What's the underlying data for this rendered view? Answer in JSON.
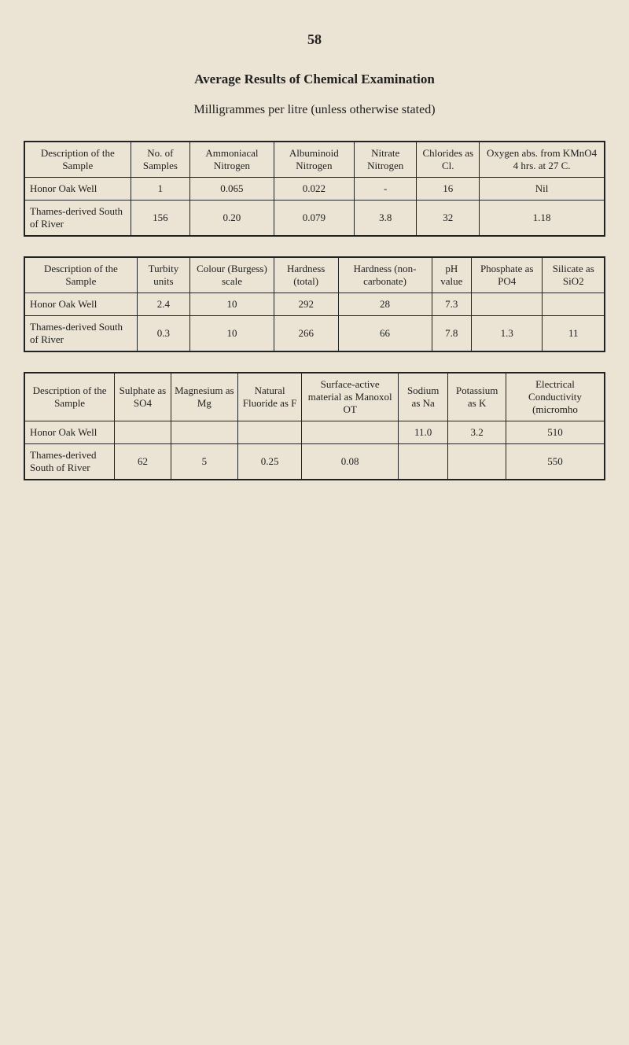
{
  "page_number": "58",
  "title": "Average Results of Chemical Examination",
  "subtitle": "Milligrammes per litre (unless otherwise stated)",
  "table1": {
    "headers": [
      "Description of the Sample",
      "No. of Samples",
      "Ammoniacal Nitrogen",
      "Albuminoid Nitrogen",
      "Nitrate Nitrogen",
      "Chlorides as Cl.",
      "Oxygen abs. from KMnO4 4 hrs. at 27 C."
    ],
    "rows": [
      {
        "label": "Honor Oak Well",
        "cells": [
          "1",
          "0.065",
          "0.022",
          "-",
          "16",
          "Nil"
        ]
      },
      {
        "label": "Thames-derived South of River",
        "cells": [
          "156",
          "0.20",
          "0.079",
          "3.8",
          "32",
          "1.18"
        ]
      }
    ]
  },
  "table2": {
    "headers": [
      "Description of the Sample",
      "Turbity units",
      "Colour (Burgess) scale",
      "Hardness (total)",
      "Hardness (non-carbonate)",
      "pH value",
      "Phosphate as PO4",
      "Silicate as SiO2"
    ],
    "rows": [
      {
        "label": "Honor Oak Well",
        "cells": [
          "2.4",
          "10",
          "292",
          "28",
          "7.3",
          "",
          ""
        ]
      },
      {
        "label": "Thames-derived South of River",
        "cells": [
          "0.3",
          "10",
          "266",
          "66",
          "7.8",
          "1.3",
          "11"
        ]
      }
    ]
  },
  "table3": {
    "headers": [
      "Description of the Sample",
      "Sulphate as SO4",
      "Magnesium as Mg",
      "Natural Fluoride as F",
      "Surface-active material as Manoxol OT",
      "Sodium as Na",
      "Potassium as K",
      "Electrical Conductivity (micromho"
    ],
    "rows": [
      {
        "label": "Honor Oak Well",
        "cells": [
          "",
          "",
          "",
          "",
          "11.0",
          "3.2",
          "510"
        ]
      },
      {
        "label": "Thames-derived South of River",
        "cells": [
          "62",
          "5",
          "0.25",
          "0.08",
          "",
          "",
          "550"
        ]
      }
    ]
  }
}
